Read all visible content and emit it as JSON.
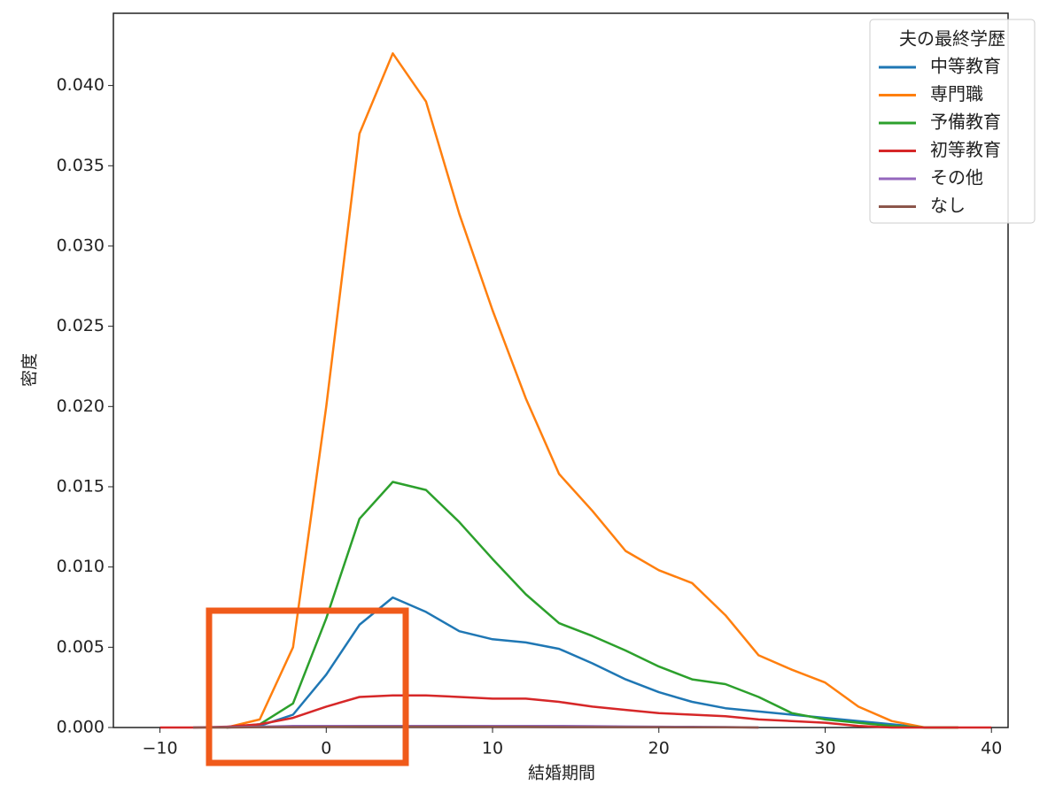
{
  "chart_data": {
    "type": "line",
    "xlabel": "結婚期間",
    "ylabel": "密度",
    "legend_title": "夫の最終学歴",
    "legend": "upper right",
    "x": [
      -10,
      -8,
      -6,
      -4,
      -2,
      0,
      2,
      4,
      6,
      8,
      10,
      12,
      14,
      16,
      18,
      20,
      22,
      24,
      26,
      28,
      30,
      32,
      34,
      36,
      38,
      40
    ],
    "series": [
      {
        "name": "中等教育",
        "color": "#1f77b4",
        "values": [
          null,
          null,
          0,
          0.0001,
          0.0008,
          0.0033,
          0.0064,
          0.0081,
          0.0072,
          0.006,
          0.0055,
          0.0053,
          0.0049,
          0.004,
          0.003,
          0.0022,
          0.0016,
          0.0012,
          0.001,
          0.0008,
          0.0006,
          0.0004,
          0.0002,
          0,
          0,
          null
        ]
      },
      {
        "name": "専門職",
        "color": "#ff7f0e",
        "values": [
          null,
          null,
          0,
          0.0005,
          0.005,
          0.02,
          0.037,
          0.042,
          0.039,
          0.032,
          0.026,
          0.0205,
          0.0158,
          0.0135,
          0.011,
          0.0098,
          0.009,
          0.007,
          0.0045,
          0.0036,
          0.0028,
          0.0013,
          0.0004,
          0,
          0,
          null
        ]
      },
      {
        "name": "予備教育",
        "color": "#2ca02c",
        "values": [
          null,
          null,
          0,
          0.0002,
          0.0015,
          0.0068,
          0.013,
          0.0153,
          0.0148,
          0.0128,
          0.0105,
          0.0083,
          0.0065,
          0.0057,
          0.0048,
          0.0038,
          0.003,
          0.0027,
          0.0019,
          0.0009,
          0.0005,
          0.0003,
          0.0001,
          0,
          0,
          null
        ]
      },
      {
        "name": "初等教育",
        "color": "#d62728",
        "values": [
          0,
          0,
          5e-05,
          0.0002,
          0.0006,
          0.0013,
          0.0019,
          0.002,
          0.002,
          0.0019,
          0.0018,
          0.0018,
          0.0016,
          0.0013,
          0.0011,
          0.0009,
          0.0008,
          0.0007,
          0.0005,
          0.0004,
          0.0003,
          0.0001,
          0,
          0,
          0,
          0
        ]
      },
      {
        "name": "その他",
        "color": "#9467bd",
        "values": [
          null,
          0,
          2e-05,
          5e-05,
          0.0001,
          0.0001,
          0.0001,
          0.0001,
          0.0001,
          0.0001,
          0.0001,
          0.0001,
          0.0001,
          8e-05,
          6e-05,
          5e-05,
          4e-05,
          3e-05,
          0,
          null,
          null,
          null,
          null,
          null,
          null,
          null
        ]
      },
      {
        "name": "なし",
        "color": "#8c564b",
        "values": [
          null,
          0,
          0,
          2e-05,
          3e-05,
          4e-05,
          5e-05,
          5e-05,
          5e-05,
          5e-05,
          4e-05,
          4e-05,
          3e-05,
          3e-05,
          2e-05,
          2e-05,
          1e-05,
          1e-05,
          0,
          null,
          null,
          null,
          null,
          null,
          null,
          null
        ]
      }
    ],
    "xlim": [
      -12.8,
      41.0
    ],
    "ylim": [
      0,
      0.0445
    ],
    "xticks": [
      {
        "value": -10,
        "label": "−10"
      },
      0,
      10,
      20,
      30,
      40
    ],
    "yticks": [
      {
        "value": 0,
        "label": "0.000"
      },
      {
        "value": 0.005,
        "label": "0.005"
      },
      {
        "value": 0.01,
        "label": "0.010"
      },
      {
        "value": 0.015,
        "label": "0.015"
      },
      {
        "value": 0.02,
        "label": "0.020"
      },
      {
        "value": 0.025,
        "label": "0.025"
      },
      {
        "value": 0.03,
        "label": "0.030"
      },
      {
        "value": 0.035,
        "label": "0.035"
      },
      {
        "value": 0.04,
        "label": "0.040"
      }
    ]
  }
}
